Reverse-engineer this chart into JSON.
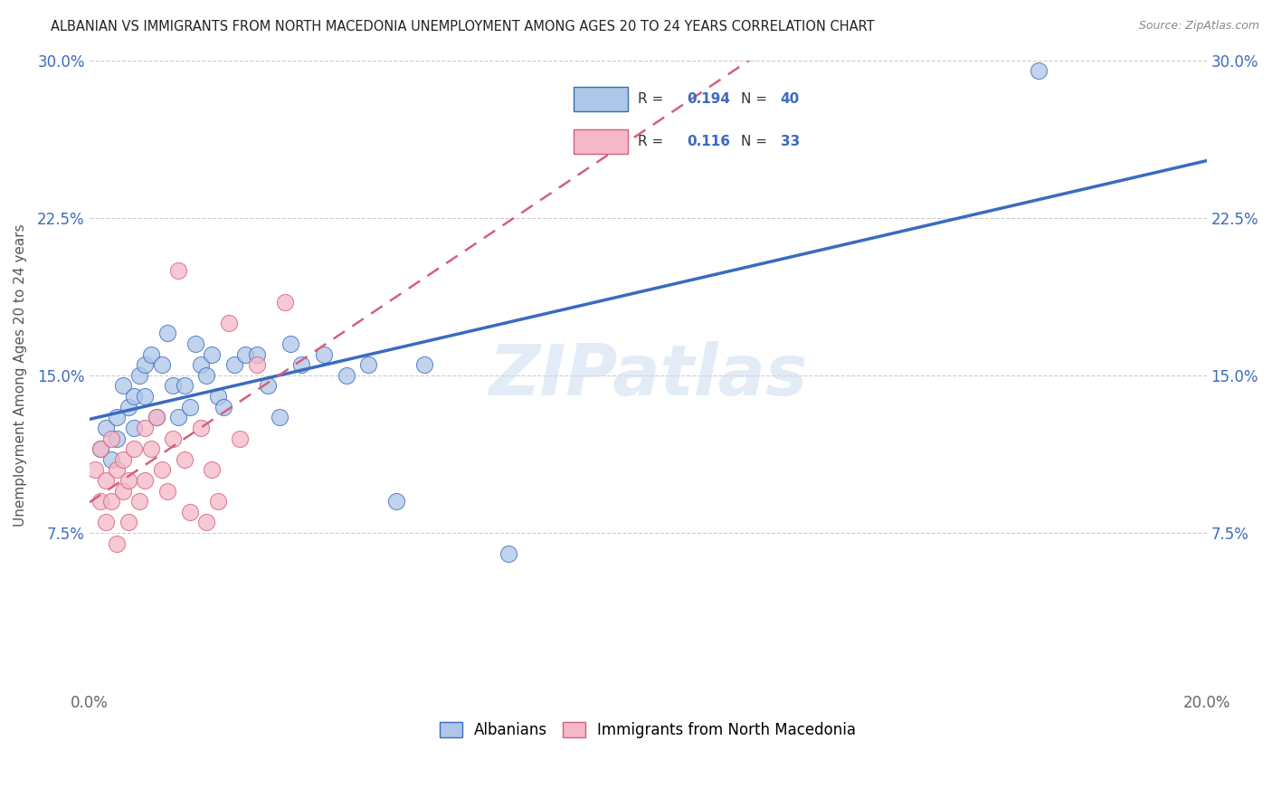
{
  "title": "ALBANIAN VS IMMIGRANTS FROM NORTH MACEDONIA UNEMPLOYMENT AMONG AGES 20 TO 24 YEARS CORRELATION CHART",
  "source": "Source: ZipAtlas.com",
  "ylabel": "Unemployment Among Ages 20 to 24 years",
  "xlim": [
    0.0,
    0.2
  ],
  "ylim": [
    0.0,
    0.3
  ],
  "xticks": [
    0.0,
    0.05,
    0.1,
    0.15,
    0.2
  ],
  "xticklabels": [
    "0.0%",
    "",
    "",
    "",
    "20.0%"
  ],
  "yticks": [
    0.0,
    0.075,
    0.15,
    0.225,
    0.3
  ],
  "yticklabels_left": [
    "",
    "7.5%",
    "15.0%",
    "22.5%",
    "30.0%"
  ],
  "r_albanian": "0.194",
  "n_albanian": "40",
  "r_immigrant": "0.116",
  "n_immigrant": "33",
  "albanian_color": "#aec6e8",
  "immigrant_color": "#f4b8c8",
  "trend_albanian_color": "#3a6bbf",
  "trend_immigrant_color": "#d4607a",
  "tick_color": "#3a6bbf",
  "watermark": "ZIPatlas",
  "albanian_x": [
    0.002,
    0.003,
    0.004,
    0.005,
    0.005,
    0.006,
    0.007,
    0.008,
    0.008,
    0.009,
    0.01,
    0.01,
    0.011,
    0.012,
    0.013,
    0.014,
    0.015,
    0.016,
    0.017,
    0.018,
    0.019,
    0.02,
    0.021,
    0.022,
    0.023,
    0.024,
    0.026,
    0.028,
    0.03,
    0.032,
    0.034,
    0.036,
    0.038,
    0.042,
    0.046,
    0.05,
    0.055,
    0.06,
    0.075,
    0.17
  ],
  "albanian_y": [
    0.115,
    0.125,
    0.11,
    0.13,
    0.12,
    0.145,
    0.135,
    0.14,
    0.125,
    0.15,
    0.155,
    0.14,
    0.16,
    0.13,
    0.155,
    0.17,
    0.145,
    0.13,
    0.145,
    0.135,
    0.165,
    0.155,
    0.15,
    0.16,
    0.14,
    0.135,
    0.155,
    0.16,
    0.16,
    0.145,
    0.13,
    0.165,
    0.155,
    0.16,
    0.15,
    0.155,
    0.09,
    0.155,
    0.065,
    0.295
  ],
  "immigrant_x": [
    0.001,
    0.002,
    0.002,
    0.003,
    0.003,
    0.004,
    0.004,
    0.005,
    0.005,
    0.006,
    0.006,
    0.007,
    0.007,
    0.008,
    0.009,
    0.01,
    0.01,
    0.011,
    0.012,
    0.013,
    0.014,
    0.015,
    0.016,
    0.017,
    0.018,
    0.02,
    0.021,
    0.022,
    0.023,
    0.025,
    0.027,
    0.03,
    0.035
  ],
  "immigrant_y": [
    0.105,
    0.115,
    0.09,
    0.1,
    0.08,
    0.12,
    0.09,
    0.105,
    0.07,
    0.11,
    0.095,
    0.1,
    0.08,
    0.115,
    0.09,
    0.125,
    0.1,
    0.115,
    0.13,
    0.105,
    0.095,
    0.12,
    0.2,
    0.11,
    0.085,
    0.125,
    0.08,
    0.105,
    0.09,
    0.175,
    0.12,
    0.155,
    0.185
  ]
}
